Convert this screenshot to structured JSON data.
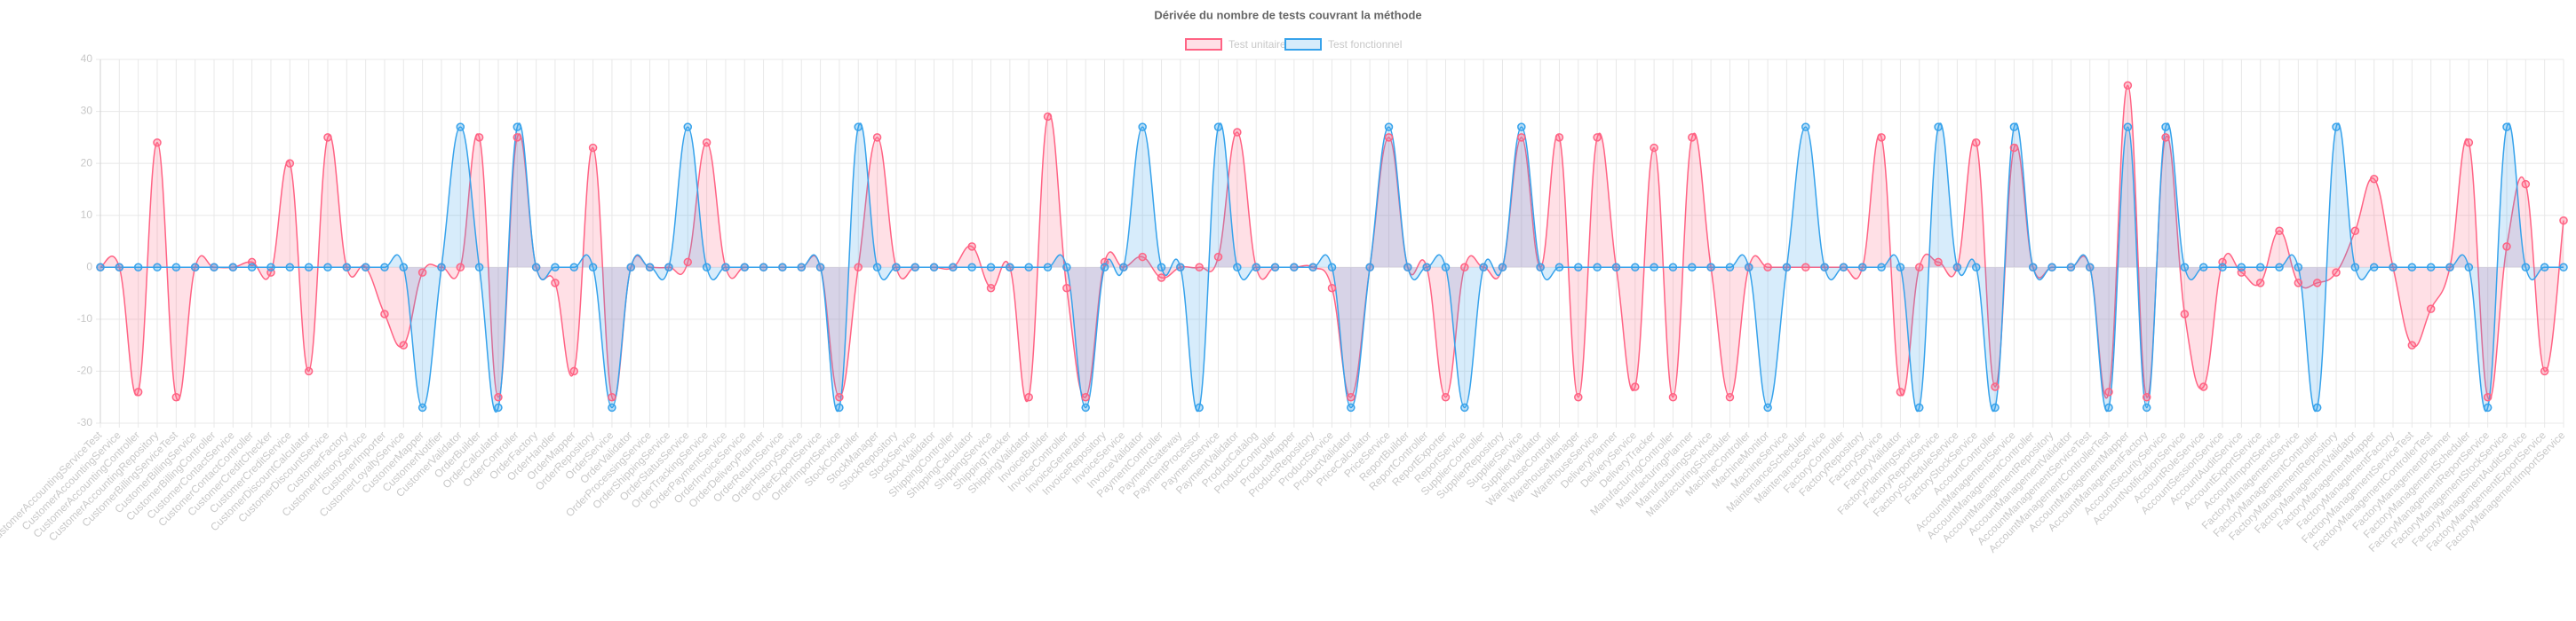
{
  "chart_data": {
    "type": "line",
    "title": "Dérivée du nombre de tests couvrant la méthode",
    "categories": [
      "CustomerAccountingServiceTest",
      "CustomerAccountingService",
      "CustomerAccountingController",
      "CustomerAccountingRepository",
      "CustomerBillingServiceTest",
      "CustomerBillingService",
      "CustomerBillingController",
      "CustomerContactService",
      "CustomerContactController",
      "CustomerCreditChecker",
      "CustomerCreditService",
      "CustomerDiscountCalculator",
      "CustomerDiscountService",
      "CustomerFactory",
      "CustomerHistoryService",
      "CustomerImporter",
      "CustomerLoyaltyService",
      "CustomerMapper",
      "CustomerNotifier",
      "CustomerValidator",
      "OrderBuilder",
      "OrderCalculator",
      "OrderController",
      "OrderFactory",
      "OrderHandler",
      "OrderMapper",
      "OrderRepository",
      "OrderService",
      "OrderValidator",
      "OrderProcessingService",
      "OrderShippingService",
      "OrderStatusService",
      "OrderTrackingService",
      "OrderPaymentService",
      "OrderInvoiceService",
      "OrderDeliveryPlanner",
      "OrderReturnService",
      "OrderHistoryService",
      "OrderExportService",
      "OrderImportService",
      "StockController",
      "StockManager",
      "StockRepository",
      "StockService",
      "StockValidator",
      "ShippingController",
      "ShippingCalculator",
      "ShippingService",
      "ShippingTracker",
      "ShippingValidator",
      "InvoiceBuilder",
      "InvoiceController",
      "InvoiceGenerator",
      "InvoiceRepository",
      "InvoiceService",
      "InvoiceValidator",
      "PaymentController",
      "PaymentGateway",
      "PaymentProcessor",
      "PaymentService",
      "PaymentValidator",
      "ProductCatalog",
      "ProductController",
      "ProductMapper",
      "ProductRepository",
      "ProductService",
      "ProductValidator",
      "PriceCalculator",
      "PriceService",
      "ReportBuilder",
      "ReportController",
      "ReportExporter",
      "ReportService",
      "SupplierController",
      "SupplierRepository",
      "SupplierService",
      "SupplierValidator",
      "WarehouseController",
      "WarehouseManager",
      "WarehouseService",
      "DeliveryPlanner",
      "DeliveryService",
      "DeliveryTracker",
      "ManufacturingController",
      "ManufacturingPlanner",
      "ManufacturingService",
      "ManufacturingScheduler",
      "MachineController",
      "MachineMonitor",
      "MachineService",
      "MaintenanceScheduler",
      "MaintenanceService",
      "FactoryController",
      "FactoryRepository",
      "FactoryService",
      "FactoryValidator",
      "FactoryPlanningService",
      "FactoryReportService",
      "FactoryScheduleService",
      "FactoryStockService",
      "AccountController",
      "AccountManagementService",
      "AccountManagementController",
      "AccountManagementRepository",
      "AccountManagementValidator",
      "AccountManagementServiceTest",
      "AccountManagementControllerTest",
      "AccountManagementMapper",
      "AccountManagementFactory",
      "AccountSecurityService",
      "AccountNotificationService",
      "AccountRoleService",
      "AccountSessionService",
      "AccountAuditService",
      "AccountExportService",
      "AccountImportService",
      "FactoryManagementService",
      "FactoryManagementController",
      "FactoryManagementRepository",
      "FactoryManagementValidator",
      "FactoryManagementMapper",
      "FactoryManagementFactory",
      "FactoryManagementServiceTest",
      "FactoryManagementControllerTest",
      "FactoryManagementPlanner",
      "FactoryManagementScheduler",
      "FactoryManagementReportService",
      "FactoryManagementStockService",
      "FactoryManagementAuditService",
      "FactoryManagementExportService",
      "FactoryManagementImportService"
    ],
    "series": [
      {
        "name": "Test unitaire",
        "color": "#ff6384",
        "values": [
          0,
          0,
          -24,
          24,
          -25,
          0,
          0,
          0,
          1,
          -1,
          20,
          -20,
          25,
          0,
          0,
          -9,
          -15,
          -1,
          0,
          0,
          25,
          -25,
          25,
          0,
          -3,
          -20,
          23,
          -25,
          0,
          0,
          0,
          1,
          24,
          0,
          0,
          0,
          0,
          0,
          0,
          -25,
          0,
          25,
          0,
          0,
          0,
          0,
          4,
          -4,
          0,
          -25,
          29,
          -4,
          -25,
          1,
          0,
          2,
          -2,
          0,
          0,
          2,
          26,
          0,
          0,
          0,
          0,
          -4,
          -25,
          0,
          25,
          0,
          0,
          -25,
          0,
          0,
          0,
          25,
          0,
          25,
          -25,
          25,
          0,
          -23,
          23,
          -25,
          25,
          0,
          -25,
          0,
          0,
          0,
          0,
          0,
          0,
          0,
          25,
          -24,
          0,
          1,
          0,
          24,
          -23,
          23,
          0,
          0,
          0,
          0,
          -24,
          35,
          -25,
          25,
          -9,
          -23,
          1,
          -1,
          -3,
          7,
          -3,
          -3,
          -1,
          7,
          17,
          0,
          -15,
          -8,
          0,
          24,
          -25,
          4,
          16,
          -20,
          9
        ]
      },
      {
        "name": "Test fonctionnel",
        "color": "#36a2eb",
        "values": [
          0,
          0,
          0,
          0,
          0,
          0,
          0,
          0,
          0,
          0,
          0,
          0,
          0,
          0,
          0,
          0,
          0,
          -27,
          0,
          27,
          0,
          -27,
          27,
          0,
          0,
          0,
          0,
          -27,
          0,
          0,
          0,
          27,
          0,
          0,
          0,
          0,
          0,
          0,
          0,
          -27,
          27,
          0,
          0,
          0,
          0,
          0,
          0,
          0,
          0,
          0,
          0,
          0,
          -27,
          0,
          0,
          27,
          0,
          0,
          -27,
          27,
          0,
          0,
          0,
          0,
          0,
          0,
          -27,
          0,
          27,
          0,
          0,
          0,
          -27,
          0,
          0,
          27,
          0,
          0,
          0,
          0,
          0,
          0,
          0,
          0,
          0,
          0,
          0,
          0,
          -27,
          0,
          27,
          0,
          0,
          0,
          0,
          0,
          -27,
          27,
          0,
          0,
          -27,
          27,
          0,
          0,
          0,
          0,
          -27,
          27,
          -27,
          27,
          0,
          0,
          0,
          0,
          0,
          0,
          0,
          -27,
          27,
          0,
          0,
          0,
          0,
          0,
          0,
          0,
          -27,
          27,
          0,
          0,
          0
        ]
      }
    ],
    "ylim": [
      -30,
      40
    ],
    "yticks": [
      -30,
      -20,
      -10,
      0,
      10,
      20,
      30,
      40
    ],
    "grid": true,
    "legend": "top"
  }
}
